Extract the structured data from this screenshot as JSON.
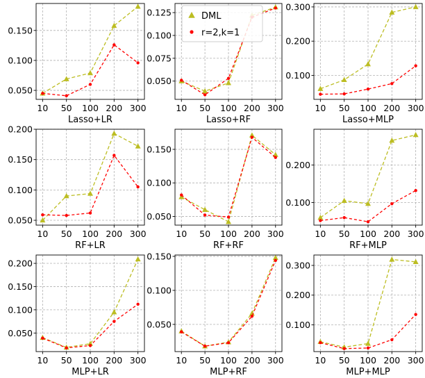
{
  "legend": {
    "entries": [
      {
        "label": "DML",
        "color": "#bcbd22",
        "marker": "triangle"
      },
      {
        "label": "r=2,k=1",
        "color": "#ff0000",
        "marker": "dot"
      }
    ]
  },
  "chart_data": [
    {
      "type": "line",
      "title": "",
      "xlabel": "Lasso+LR",
      "ylabel": "",
      "categories": [
        "10",
        "50",
        "100",
        "200",
        "300"
      ],
      "ylim": [
        0.035,
        0.195
      ],
      "yticks": [
        0.05,
        0.1,
        0.15
      ],
      "ytick_labels": [
        "0.050",
        "0.100",
        "0.150"
      ],
      "legend": false,
      "series": [
        {
          "name": "DML",
          "values": [
            0.045,
            0.069,
            0.079,
            0.158,
            0.19
          ]
        },
        {
          "name": "r=2,k=1",
          "values": [
            0.045,
            0.041,
            0.06,
            0.126,
            0.096
          ]
        }
      ]
    },
    {
      "type": "line",
      "title": "",
      "xlabel": "Lasso+RF",
      "ylabel": "",
      "categories": [
        "10",
        "50",
        "100",
        "200",
        "300"
      ],
      "ylim": [
        0.03,
        0.135
      ],
      "yticks": [
        0.05,
        0.075,
        0.1,
        0.125
      ],
      "ytick_labels": [
        "0.050",
        "0.075",
        "0.100",
        "0.125"
      ],
      "legend": true,
      "series": [
        {
          "name": "DML",
          "values": [
            0.05,
            0.039,
            0.048,
            0.122,
            0.131
          ]
        },
        {
          "name": "r=2,k=1",
          "values": [
            0.051,
            0.035,
            0.053,
            0.12,
            0.13
          ]
        }
      ]
    },
    {
      "type": "line",
      "title": "",
      "xlabel": "Lasso+MLP",
      "ylabel": "",
      "categories": [
        "10",
        "50",
        "100",
        "200",
        "300"
      ],
      "ylim": [
        0.03,
        0.31
      ],
      "yticks": [
        0.1,
        0.2,
        0.3
      ],
      "ytick_labels": [
        "0.100",
        "0.200",
        "0.300"
      ],
      "legend": false,
      "series": [
        {
          "name": "DML",
          "values": [
            0.061,
            0.087,
            0.133,
            0.284,
            0.3
          ]
        },
        {
          "name": "r=2,k=1",
          "values": [
            0.045,
            0.046,
            0.06,
            0.076,
            0.128
          ]
        }
      ]
    },
    {
      "type": "line",
      "title": "",
      "xlabel": "RF+LR",
      "ylabel": "",
      "categories": [
        "10",
        "50",
        "100",
        "200",
        "300"
      ],
      "ylim": [
        0.042,
        0.2
      ],
      "yticks": [
        0.05,
        0.1,
        0.15,
        0.2
      ],
      "ytick_labels": [
        "0.050",
        "0.100",
        "0.150",
        "0.200"
      ],
      "legend": false,
      "series": [
        {
          "name": "DML",
          "values": [
            0.05,
            0.09,
            0.094,
            0.193,
            0.172
          ]
        },
        {
          "name": "r=2,k=1",
          "values": [
            0.059,
            0.058,
            0.062,
            0.157,
            0.105
          ]
        }
      ]
    },
    {
      "type": "line",
      "title": "",
      "xlabel": "RF+RF",
      "ylabel": "",
      "categories": [
        "10",
        "50",
        "100",
        "200",
        "300"
      ],
      "ylim": [
        0.037,
        0.18
      ],
      "yticks": [
        0.05,
        0.1,
        0.15
      ],
      "ytick_labels": [
        "0.050",
        "0.100",
        "0.150"
      ],
      "legend": false,
      "series": [
        {
          "name": "DML",
          "values": [
            0.079,
            0.06,
            0.042,
            0.171,
            0.142
          ]
        },
        {
          "name": "r=2,k=1",
          "values": [
            0.082,
            0.052,
            0.049,
            0.168,
            0.138
          ]
        }
      ]
    },
    {
      "type": "line",
      "title": "",
      "xlabel": "RF+MLP",
      "ylabel": "",
      "categories": [
        "10",
        "50",
        "100",
        "200",
        "300"
      ],
      "ylim": [
        0.04,
        0.295
      ],
      "yticks": [
        0.1,
        0.2
      ],
      "ytick_labels": [
        "0.100",
        "0.200"
      ],
      "legend": false,
      "series": [
        {
          "name": "DML",
          "values": [
            0.06,
            0.105,
            0.097,
            0.265,
            0.28
          ]
        },
        {
          "name": "r=2,k=1",
          "values": [
            0.052,
            0.06,
            0.049,
            0.097,
            0.132
          ]
        }
      ]
    },
    {
      "type": "line",
      "title": "",
      "xlabel": "MLP+LR",
      "ylabel": "",
      "categories": [
        "10",
        "50",
        "100",
        "200",
        "300"
      ],
      "ylim": [
        0.01,
        0.218
      ],
      "yticks": [
        0.05,
        0.1,
        0.15,
        0.2
      ],
      "ytick_labels": [
        "0.050",
        "0.100",
        "0.150",
        "0.200"
      ],
      "legend": false,
      "series": [
        {
          "name": "DML",
          "values": [
            0.04,
            0.019,
            0.027,
            0.095,
            0.209
          ]
        },
        {
          "name": "r=2,k=1",
          "values": [
            0.039,
            0.018,
            0.023,
            0.075,
            0.112
          ]
        }
      ]
    },
    {
      "type": "line",
      "title": "",
      "xlabel": "MLP+RF",
      "ylabel": "",
      "categories": [
        "10",
        "50",
        "100",
        "200",
        "300"
      ],
      "ylim": [
        0.01,
        0.152
      ],
      "yticks": [
        0.05,
        0.1,
        0.15
      ],
      "ytick_labels": [
        "0.050",
        "0.100",
        "0.150"
      ],
      "legend": false,
      "series": [
        {
          "name": "DML",
          "values": [
            0.04,
            0.018,
            0.024,
            0.066,
            0.148
          ]
        },
        {
          "name": "r=2,k=1",
          "values": [
            0.039,
            0.018,
            0.023,
            0.062,
            0.144
          ]
        }
      ]
    },
    {
      "type": "line",
      "title": "",
      "xlabel": "MLP+MLP",
      "ylabel": "",
      "categories": [
        "10",
        "50",
        "100",
        "200",
        "300"
      ],
      "ylim": [
        0.01,
        0.335
      ],
      "yticks": [
        0.1,
        0.2,
        0.3
      ],
      "ytick_labels": [
        "0.100",
        "0.200",
        "0.300"
      ],
      "legend": false,
      "series": [
        {
          "name": "DML",
          "values": [
            0.043,
            0.025,
            0.037,
            0.32,
            0.312
          ]
        },
        {
          "name": "r=2,k=1",
          "values": [
            0.04,
            0.02,
            0.022,
            0.05,
            0.135
          ]
        }
      ]
    }
  ]
}
